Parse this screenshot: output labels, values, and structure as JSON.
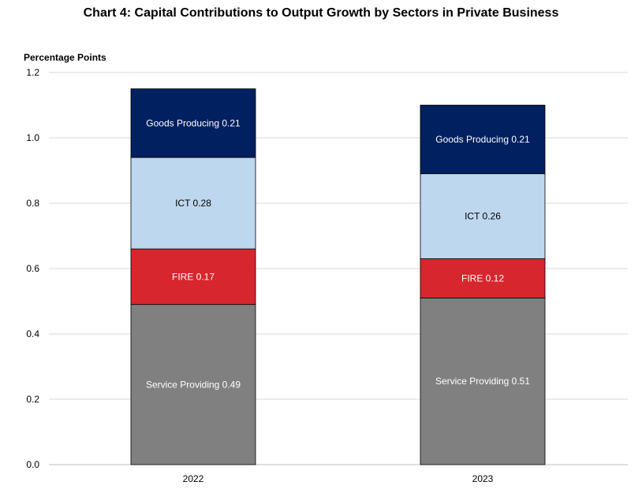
{
  "chart_data": {
    "type": "bar",
    "stacked": true,
    "title": "Chart 4: Capital Contributions to Output Growth by Sectors in Private Business",
    "ylabel": "Percentage Points",
    "xlabel": "",
    "categories": [
      "2022",
      "2023"
    ],
    "ylim": [
      0,
      1.2
    ],
    "yticks": [
      "0.0",
      "0.2",
      "0.4",
      "0.6",
      "0.8",
      "1.0",
      "1.2"
    ],
    "grid": true,
    "series": [
      {
        "name": "Service Providing",
        "values": [
          0.49,
          0.51
        ],
        "color": "#808080",
        "label_color": "#ffffff",
        "labels": [
          "Service Providing 0.49",
          "Service Providing 0.51"
        ]
      },
      {
        "name": "FIRE",
        "values": [
          0.17,
          0.12
        ],
        "color": "#d7262e",
        "label_color": "#ffffff",
        "labels": [
          "FIRE 0.17",
          "FIRE 0.12"
        ]
      },
      {
        "name": "ICT",
        "values": [
          0.28,
          0.26
        ],
        "color": "#bdd7ee",
        "label_color": "#000000",
        "labels": [
          "ICT 0.28",
          "ICT 0.26"
        ]
      },
      {
        "name": "Goods Producing",
        "values": [
          0.21,
          0.21
        ],
        "color": "#002060",
        "label_color": "#ffffff",
        "labels": [
          "Goods Producing 0.21",
          "Goods Producing 0.21"
        ]
      }
    ]
  }
}
